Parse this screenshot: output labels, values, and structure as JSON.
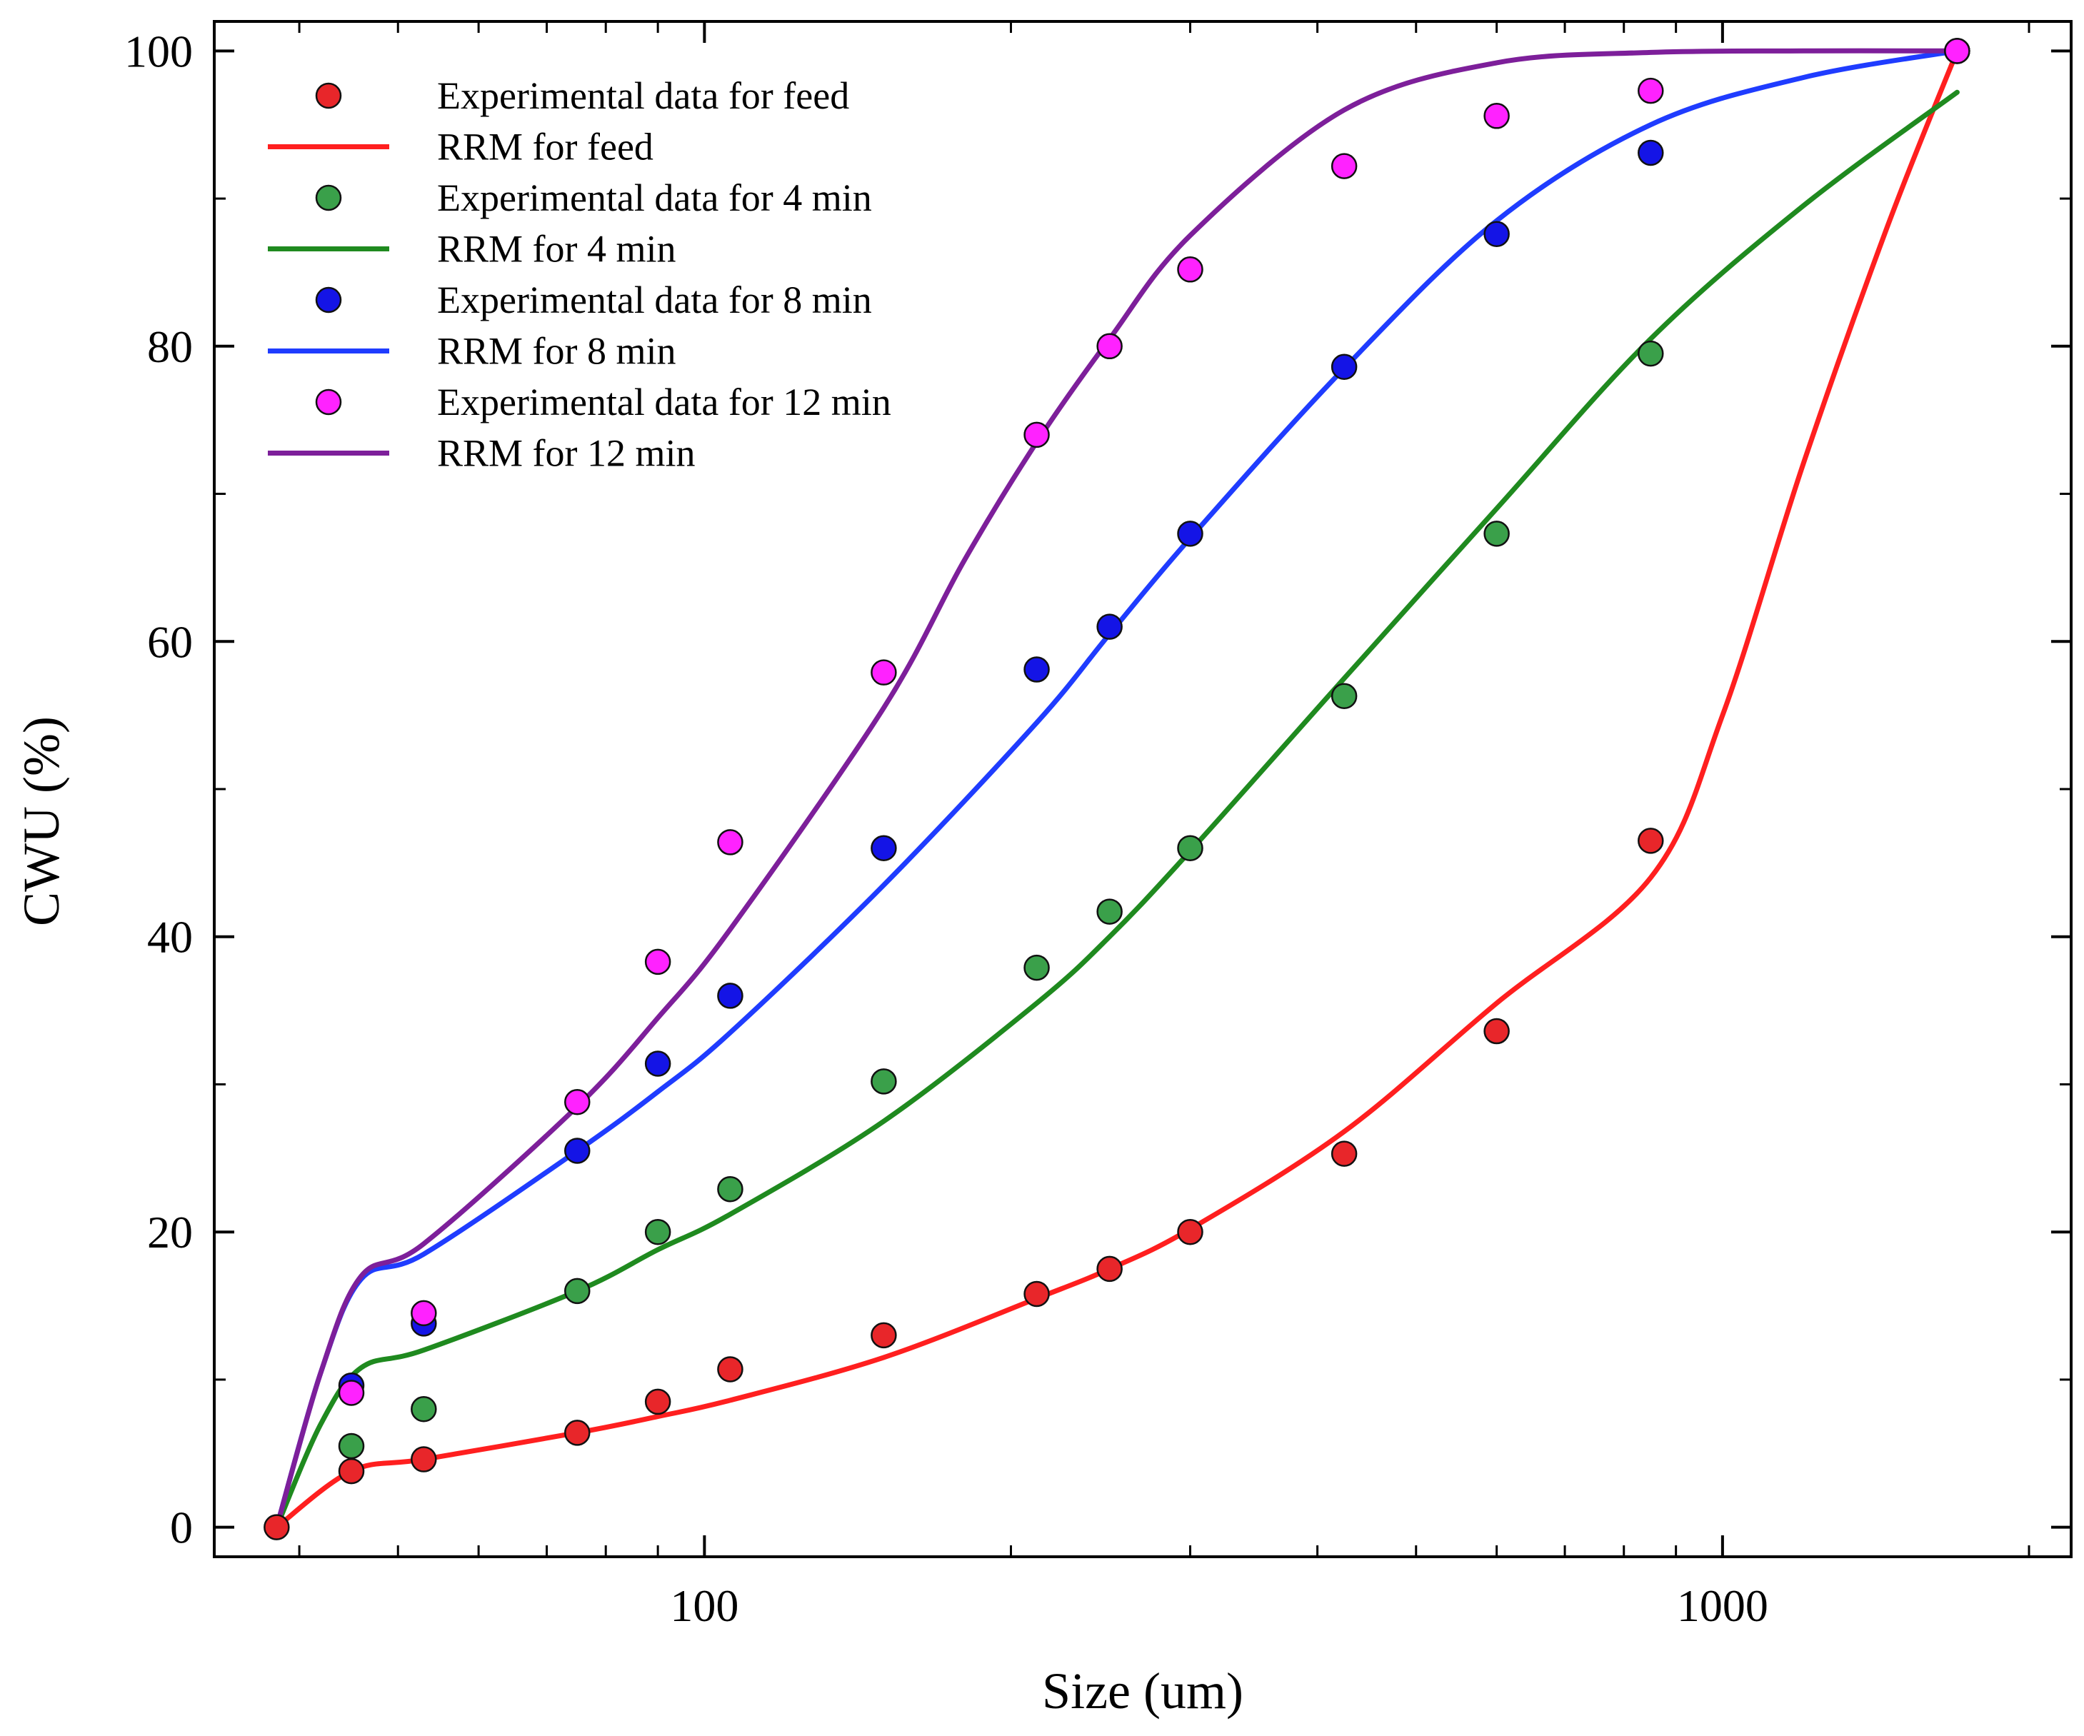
{
  "chart_data": {
    "type": "scatter",
    "title": "",
    "xlabel": "Size (um)",
    "ylabel": "CWU (%)",
    "x_scale": "log",
    "xlim": [
      33,
      2200
    ],
    "ylim": [
      -2,
      102
    ],
    "x_ticks": [
      100,
      1000
    ],
    "x_tick_labels": [
      "100",
      "1000"
    ],
    "y_ticks": [
      0,
      20,
      40,
      60,
      80,
      100
    ],
    "y_tick_labels": [
      "0",
      "20",
      "40",
      "60",
      "80",
      "100"
    ],
    "grid": false,
    "legend_position": "top-left",
    "legend": [
      {
        "label": "Experimental data for feed",
        "kind": "marker",
        "color": "#e8262a"
      },
      {
        "label": "RRM for feed",
        "kind": "line",
        "color": "#ff1f1f"
      },
      {
        "label": "Experimental data for 4 min",
        "kind": "marker",
        "color": "#3aa04a"
      },
      {
        "label": "RRM for 4 min",
        "kind": "line",
        "color": "#1f8a1f"
      },
      {
        "label": "Experimental data for 8 min",
        "kind": "marker",
        "color": "#1414e6"
      },
      {
        "label": "RRM for 8 min",
        "kind": "line",
        "color": "#1f3cff"
      },
      {
        "label": "Experimental data for 12 min",
        "kind": "marker",
        "color": "#ff22ff"
      },
      {
        "label": "RRM for 12 min",
        "kind": "line",
        "color": "#7d1f9a"
      }
    ],
    "series": [
      {
        "name": "Experimental data for feed",
        "kind": "marker",
        "color": "#e8262a",
        "x": [
          38,
          45,
          53,
          75,
          90,
          106,
          150,
          212,
          250,
          300,
          425,
          600,
          850,
          1700
        ],
        "y": [
          0,
          3.8,
          4.6,
          6.4,
          8.5,
          10.7,
          13,
          15.8,
          17.5,
          20,
          25.3,
          33.6,
          46.5,
          100
        ]
      },
      {
        "name": "RRM for feed",
        "kind": "line",
        "color": "#ff1f1f",
        "x": [
          38,
          45,
          53,
          75,
          90,
          106,
          150,
          212,
          250,
          300,
          425,
          600,
          850,
          1000,
          1200,
          1450,
          1700
        ],
        "y": [
          0,
          3.8,
          4.6,
          6.4,
          7.5,
          8.6,
          11.5,
          15.5,
          17.5,
          20.2,
          26.8,
          35.5,
          44,
          55,
          72,
          88,
          100
        ]
      },
      {
        "name": "Experimental data for 4 min",
        "kind": "marker",
        "color": "#3aa04a",
        "x": [
          45,
          53,
          75,
          90,
          106,
          150,
          212,
          250,
          300,
          425,
          600,
          850,
          1700
        ],
        "y": [
          5.5,
          8,
          16,
          20,
          22.9,
          30.2,
          37.9,
          41.7,
          46,
          56.3,
          67.3,
          79.5,
          100
        ]
      },
      {
        "name": "RRM for 4 min",
        "kind": "line",
        "color": "#1f8a1f",
        "x": [
          38,
          42,
          46,
          53,
          75,
          90,
          106,
          150,
          212,
          250,
          300,
          425,
          600,
          850,
          1200,
          1700
        ],
        "y": [
          0,
          7,
          10.8,
          12,
          16,
          18.8,
          21.2,
          27.5,
          35.5,
          40,
          45.8,
          57.5,
          69,
          80.5,
          89.5,
          97.2
        ]
      },
      {
        "name": "Experimental data for 8 min",
        "kind": "marker",
        "color": "#1414e6",
        "x": [
          45,
          53,
          75,
          90,
          106,
          150,
          212,
          250,
          300,
          425,
          600,
          850,
          1700
        ],
        "y": [
          9.6,
          13.8,
          25.5,
          31.4,
          36,
          46,
          58.1,
          61,
          67.3,
          78.6,
          87.6,
          93.1,
          100
        ]
      },
      {
        "name": "RRM for 8 min",
        "kind": "line",
        "color": "#1f3cff",
        "x": [
          38,
          42,
          46,
          53,
          75,
          90,
          106,
          150,
          212,
          250,
          300,
          425,
          600,
          850,
          1200,
          1700
        ],
        "y": [
          0,
          10.5,
          16.8,
          18.5,
          25.5,
          29.5,
          33.5,
          43.5,
          54.5,
          60.5,
          67,
          78.5,
          88.5,
          95,
          98.2,
          100
        ]
      },
      {
        "name": "Experimental data for 12 min",
        "kind": "marker",
        "color": "#ff22ff",
        "x": [
          45,
          53,
          75,
          90,
          106,
          150,
          212,
          250,
          300,
          425,
          600,
          850,
          1700
        ],
        "y": [
          9.1,
          14.5,
          28.8,
          38.3,
          46.4,
          57.9,
          74,
          80,
          85.2,
          92.2,
          95.6,
          97.3,
          100
        ]
      },
      {
        "name": "RRM for 12 min",
        "kind": "line",
        "color": "#7d1f9a",
        "x": [
          38,
          42,
          46,
          53,
          75,
          90,
          106,
          150,
          180,
          212,
          250,
          300,
          425,
          600,
          850,
          1200,
          1700
        ],
        "y": [
          0,
          10.5,
          17,
          19.2,
          28.5,
          34.5,
          40.5,
          55.5,
          65.5,
          73.5,
          80.5,
          87.5,
          96,
          99.2,
          99.9,
          100,
          100
        ]
      }
    ]
  }
}
